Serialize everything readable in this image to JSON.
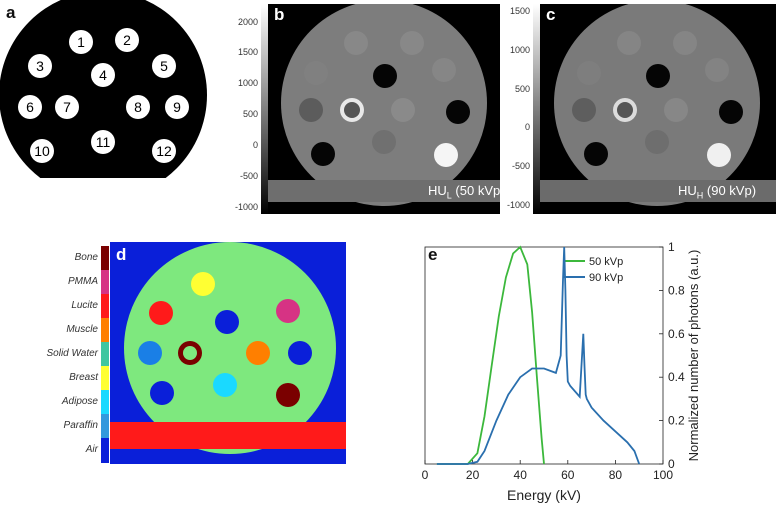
{
  "panels": {
    "a": {
      "label": "a",
      "inserts": [
        "1",
        "2",
        "3",
        "4",
        "5",
        "6",
        "7",
        "8",
        "9",
        "10",
        "11",
        "12"
      ]
    },
    "b": {
      "label": "b",
      "caption_main": "HU",
      "caption_sub": "L",
      "caption_kv": "(50 kVp)",
      "colorbar_ticks": [
        "2000",
        "1500",
        "1000",
        "500",
        "0",
        "-500",
        "-1000"
      ]
    },
    "c": {
      "label": "c",
      "caption_main": "HU",
      "caption_sub": "H",
      "caption_kv": "(90 kVp)",
      "colorbar_ticks": [
        "1500",
        "1000",
        "500",
        "0",
        "-500",
        "-1000"
      ]
    },
    "d": {
      "label": "d",
      "materials": [
        "Bone",
        "PMMA",
        "Lucite",
        "Muscle",
        "Solid Water",
        "Breast",
        "Adipose",
        "Paraffin",
        "Air"
      ],
      "material_colors": [
        "#7a0000",
        "#d63384",
        "#ff1a1a",
        "#ff7f00",
        "#3fc6a0",
        "#ffff33",
        "#1ad9ff",
        "#3399dd",
        "#0a1fd9"
      ]
    },
    "e": {
      "label": "e"
    }
  },
  "chart_data": {
    "type": "line",
    "xlabel": "Energy (kV)",
    "ylabel": "Normalized number of photons (a.u.)",
    "xlim": [
      0,
      100
    ],
    "ylim": [
      0,
      1
    ],
    "xticks": [
      "0",
      "20",
      "40",
      "60",
      "80",
      "100"
    ],
    "yticks": [
      "0",
      "0.2",
      "0.4",
      "0.6",
      "0.8",
      "1"
    ],
    "legend": "top-right",
    "series": [
      {
        "name": "50 kVp",
        "color": "#3cb83c",
        "x": [
          5,
          18,
          22,
          25,
          28,
          31,
          34,
          37,
          40,
          43,
          45,
          47,
          49,
          50
        ],
        "y": [
          0,
          0,
          0.05,
          0.22,
          0.45,
          0.68,
          0.86,
          0.97,
          1.0,
          0.92,
          0.7,
          0.4,
          0.12,
          0
        ]
      },
      {
        "name": "90 kVp",
        "color": "#2a6fae",
        "x": [
          5,
          18,
          22,
          25,
          30,
          35,
          40,
          45,
          50,
          55,
          57,
          58,
          58.5,
          59,
          59.5,
          60,
          61,
          65,
          66.5,
          67,
          67.5,
          68,
          70,
          75,
          80,
          85,
          88,
          90
        ],
        "y": [
          0,
          0,
          0.01,
          0.06,
          0.2,
          0.32,
          0.4,
          0.44,
          0.44,
          0.42,
          0.5,
          0.85,
          1.0,
          0.8,
          0.5,
          0.38,
          0.36,
          0.31,
          0.6,
          0.45,
          0.32,
          0.3,
          0.26,
          0.2,
          0.15,
          0.1,
          0.06,
          0
        ]
      }
    ]
  }
}
